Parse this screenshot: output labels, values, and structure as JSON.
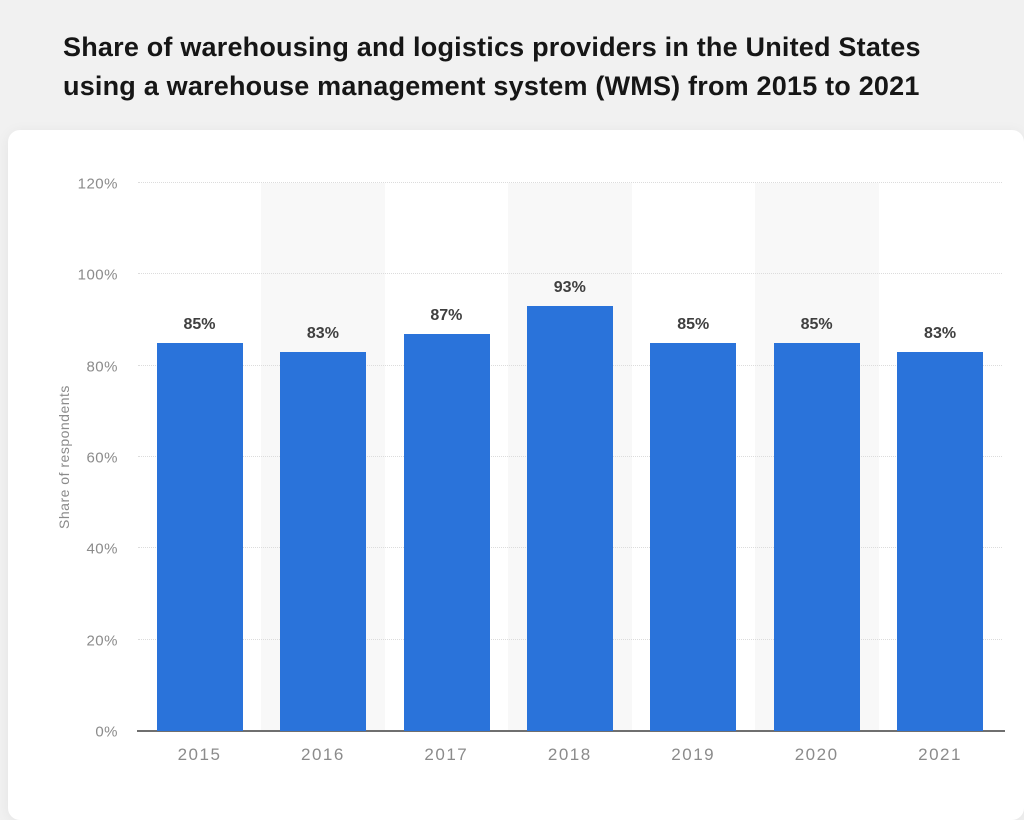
{
  "header": {
    "title_lines": [
      "Share of warehousing and logistics providers in the United States",
      "using a warehouse management system (WMS) from 2015 to 2021"
    ]
  },
  "chart_data": {
    "type": "bar",
    "title": "Share of warehousing and logistics providers in the United States using a warehouse management system (WMS) from 2015 to 2021",
    "categories": [
      "2015",
      "2016",
      "2017",
      "2018",
      "2019",
      "2020",
      "2021"
    ],
    "values": [
      85,
      83,
      87,
      93,
      85,
      85,
      83
    ],
    "value_labels": [
      "85%",
      "83%",
      "87%",
      "93%",
      "85%",
      "85%",
      "83%"
    ],
    "xlabel": "",
    "ylabel": "Share of respondents",
    "ylim": [
      0,
      120
    ],
    "ytick_step": 20,
    "ytick_labels": [
      "0%",
      "20%",
      "40%",
      "60%",
      "80%",
      "100%",
      "120%"
    ],
    "grid": "horizontal-dotted",
    "legend": "none",
    "striped_columns": [
      1,
      3,
      5
    ],
    "colors": {
      "bar": "#2a73da",
      "band": "#f8f8f8",
      "gridline": "#dcdcdc",
      "baseline": "#6f6f6f",
      "tick_text": "#8b8b8b",
      "value_text": "#3f3f3f",
      "title_text": "#161616",
      "card_bg": "#ffffff",
      "page_bg": "#f1f1f1"
    }
  }
}
